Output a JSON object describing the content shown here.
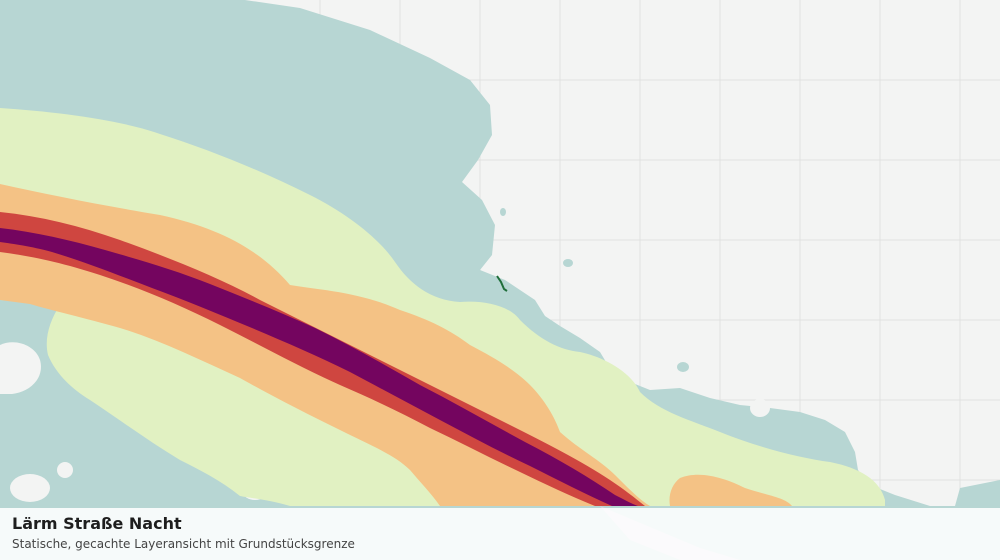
{
  "map": {
    "title": "Lärm Straße Nacht",
    "subtitle": "Statische, gecachte Layeransicht mit Grundstücksgrenze",
    "colors": {
      "background": "#f3f4f3",
      "grid": "#e0e2e0",
      "zone_lowest": "#b7d6d3",
      "zone_low": "#e1f1c2",
      "zone_mid": "#f4c285",
      "zone_high": "#cf4640",
      "zone_highest": "#74055f",
      "parcel_boundary": "#1f6e3a"
    }
  }
}
